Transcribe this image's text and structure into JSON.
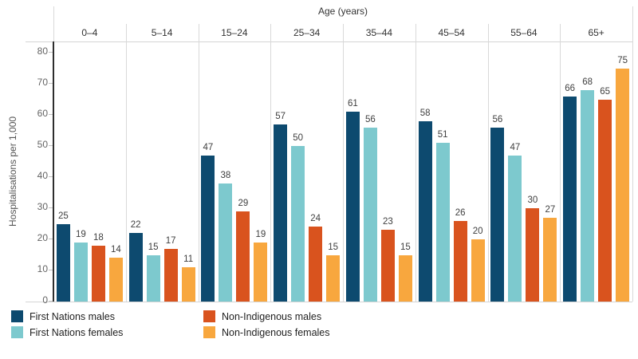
{
  "chart_data": {
    "type": "bar",
    "title": "Age (years)",
    "ylabel": "Hospitalisations per 1,000",
    "ylim": [
      0,
      80
    ],
    "yticks": [
      0,
      10,
      20,
      30,
      40,
      50,
      60,
      70,
      80
    ],
    "grid": false,
    "legend_position": "bottom-left",
    "categories": [
      "0–4",
      "5–14",
      "15–24",
      "25–34",
      "35–44",
      "45–54",
      "55–64",
      "65+"
    ],
    "series": [
      {
        "name": "First Nations males",
        "color": "#0D4A6F",
        "values": [
          25,
          22,
          47,
          57,
          61,
          58,
          56,
          66
        ]
      },
      {
        "name": "First Nations females",
        "color": "#7DC9CE",
        "values": [
          19,
          15,
          38,
          50,
          56,
          51,
          47,
          68
        ]
      },
      {
        "name": "Non-Indigenous males",
        "color": "#D9531E",
        "values": [
          18,
          17,
          29,
          24,
          23,
          26,
          30,
          65
        ]
      },
      {
        "name": "Non-Indigenous females",
        "color": "#F8A73E",
        "values": [
          14,
          11,
          19,
          15,
          15,
          20,
          27,
          75
        ]
      }
    ]
  }
}
